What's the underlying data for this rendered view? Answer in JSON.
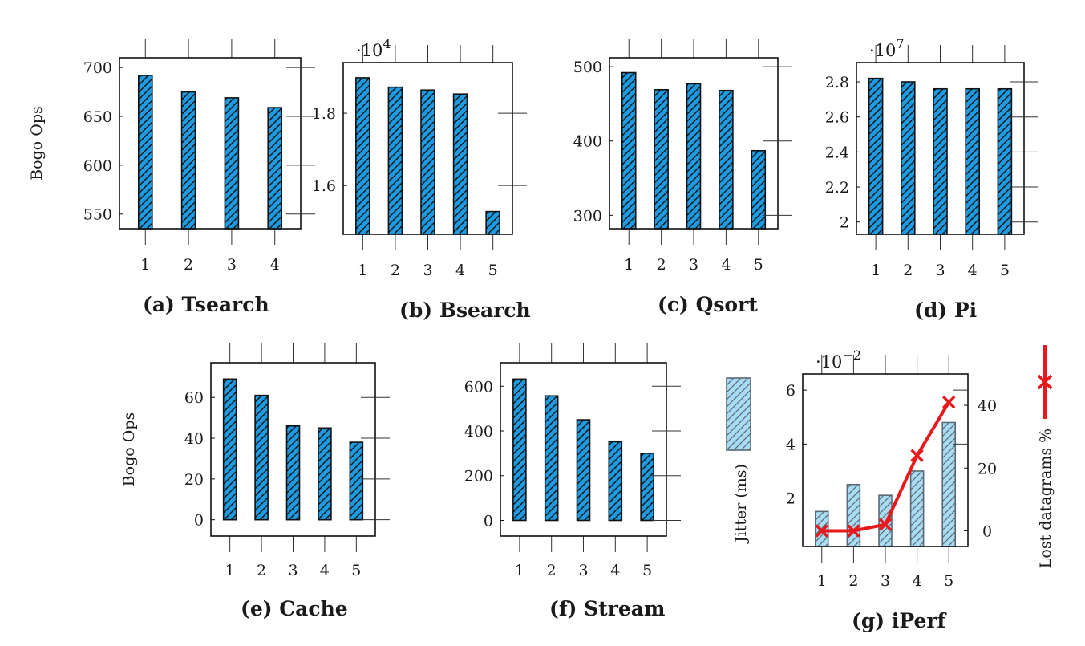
{
  "figure": {
    "bottom_caption": "… … … … …"
  },
  "chart_data": [
    {
      "id": "a",
      "type": "bar",
      "caption": "(a) Tsearch",
      "ylabel": "Bogo Ops",
      "exponent": "",
      "categories": [
        "1",
        "2",
        "3",
        "4"
      ],
      "values": [
        692,
        675,
        669,
        659
      ],
      "ylim": [
        535,
        710
      ],
      "yticks": [
        550,
        600,
        650,
        700
      ],
      "ytick_labels": [
        "550",
        "600",
        "650",
        "700"
      ],
      "ticks_side": "left",
      "color": "#1e9ae0"
    },
    {
      "id": "b",
      "type": "bar",
      "caption": "(b) Bsearch",
      "ylabel": "",
      "exponent": "·10",
      "exponent_power": "4",
      "categories": [
        "1",
        "2",
        "3",
        "4",
        "5"
      ],
      "values": [
        1.898,
        1.872,
        1.864,
        1.853,
        1.528
      ],
      "ylim": [
        1.465,
        1.94
      ],
      "yticks": [
        1.6,
        1.8
      ],
      "ytick_labels": [
        "1.6",
        "1.8"
      ],
      "ticks_side": "left",
      "color": "#1e9ae0"
    },
    {
      "id": "c",
      "type": "bar",
      "caption": "(c) Qsort",
      "ylabel": "",
      "exponent": "",
      "categories": [
        "1",
        "2",
        "3",
        "4",
        "5"
      ],
      "values": [
        492,
        469,
        477,
        468,
        387
      ],
      "ylim": [
        282,
        512
      ],
      "yticks": [
        300,
        400,
        500
      ],
      "ytick_labels": [
        "300",
        "400",
        "500"
      ],
      "ticks_side": "left",
      "color": "#1e9ae0"
    },
    {
      "id": "d",
      "type": "bar",
      "caption": "(d) Pi",
      "ylabel": "",
      "exponent": "·10",
      "exponent_power": "7",
      "categories": [
        "1",
        "2",
        "3",
        "4",
        "5"
      ],
      "values": [
        2.82,
        2.8,
        2.76,
        2.76,
        2.76
      ],
      "ylim": [
        1.93,
        2.91
      ],
      "yticks": [
        2.0,
        2.2,
        2.4,
        2.6,
        2.8
      ],
      "ytick_labels": [
        "2",
        "2.2",
        "2.4",
        "2.6",
        "2.8"
      ],
      "ticks_side": "left",
      "color": "#1e9ae0"
    },
    {
      "id": "e",
      "type": "bar",
      "caption": "(e) Cache",
      "ylabel": "Bogo Ops",
      "exponent": "",
      "categories": [
        "1",
        "2",
        "3",
        "4",
        "5"
      ],
      "values": [
        69,
        61,
        46,
        45,
        38
      ],
      "ylim": [
        -8,
        77
      ],
      "yticks": [
        0,
        20,
        40,
        60
      ],
      "ytick_labels": [
        "0",
        "20",
        "40",
        "60"
      ],
      "ticks_side": "left",
      "color": "#1e9ae0"
    },
    {
      "id": "f",
      "type": "bar",
      "caption": "(f) Stream",
      "ylabel": "",
      "exponent": "",
      "categories": [
        "1",
        "2",
        "3",
        "4",
        "5"
      ],
      "values": [
        632,
        557,
        450,
        352,
        300
      ],
      "ylim": [
        -70,
        705
      ],
      "yticks": [
        0,
        200,
        400,
        600
      ],
      "ytick_labels": [
        "0",
        "200",
        "400",
        "600"
      ],
      "ticks_side": "left",
      "color": "#1e9ae0"
    },
    {
      "id": "g",
      "type": "bar+line",
      "caption": "(g) iPerf",
      "ylabel": "Jitter (ms)",
      "y2label": "Lost datagrams %",
      "exponent": "·10",
      "exponent_power": "−2",
      "categories": [
        "1",
        "2",
        "3",
        "4",
        "5"
      ],
      "series": [
        {
          "name": "Jitter (ms)",
          "type": "bar",
          "values": [
            1.5,
            2.5,
            2.1,
            3.0,
            4.8
          ],
          "color": "#a8dcf5"
        },
        {
          "name": "Lost datagrams %",
          "type": "line",
          "marker": "x",
          "values": [
            0,
            0,
            2,
            24,
            41
          ],
          "color": "#e8191c"
        }
      ],
      "ylim": [
        0.2,
        6.6
      ],
      "yticks": [
        2,
        4,
        6
      ],
      "ytick_labels": [
        "2",
        "4",
        "6"
      ],
      "y2lim": [
        -5,
        50
      ],
      "y2ticks": [
        0,
        20,
        40
      ],
      "y2tick_labels": [
        "0",
        "20",
        "40"
      ],
      "legend": "outside-left-and-right"
    }
  ]
}
